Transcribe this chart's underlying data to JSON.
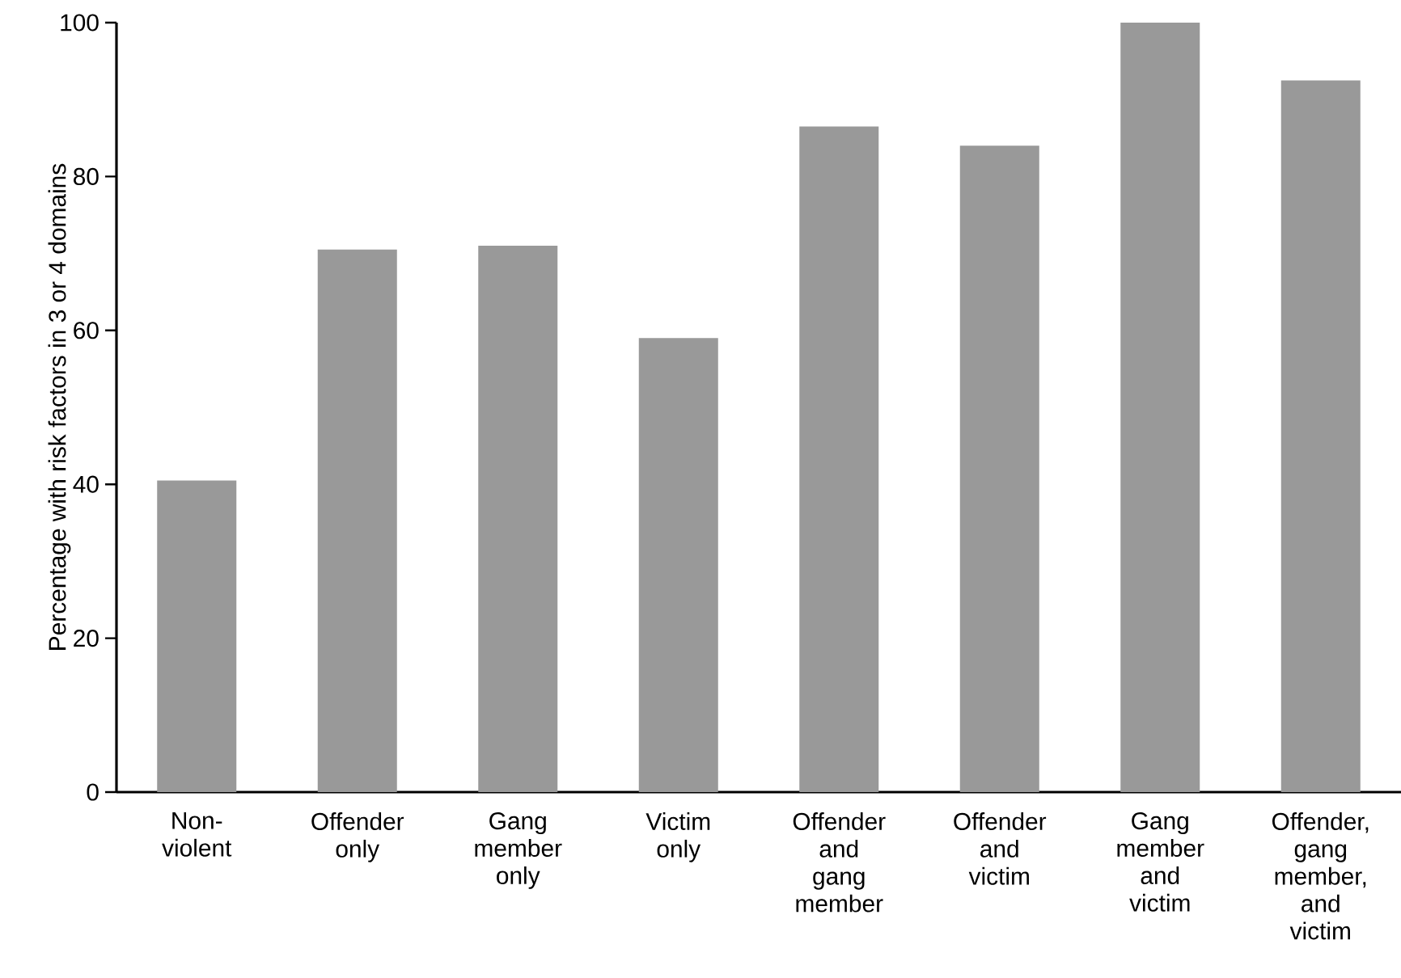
{
  "chart_data": {
    "type": "bar",
    "ylabel": "Percentage with risk factors in 3 or 4 domains",
    "categories": [
      "Non-violent",
      "Offender only",
      "Gang member only",
      "Victim only",
      "Offender and gang member",
      "Offender and victim",
      "Gang member and victim",
      "Offender, gang member, and victim"
    ],
    "values": [
      40.5,
      70.5,
      71,
      59,
      86.5,
      84,
      100,
      92.5
    ],
    "color": "#999999",
    "ylim": [
      0,
      100
    ],
    "yticks": [
      0,
      20,
      40,
      60,
      80,
      100
    ],
    "grid": false
  }
}
